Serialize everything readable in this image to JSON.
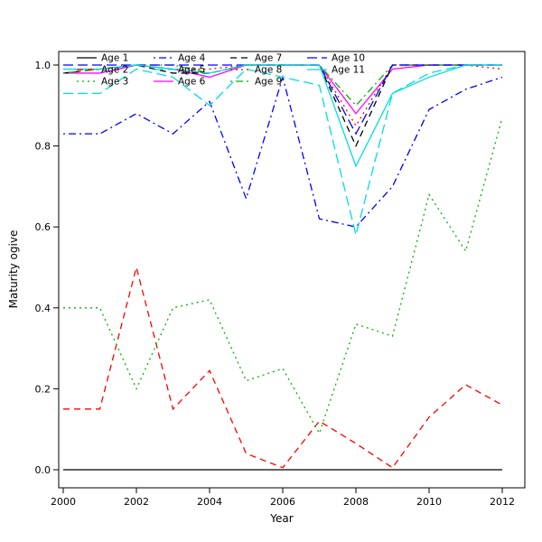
{
  "chart_data": {
    "type": "line",
    "title": "",
    "xlabel": "Year",
    "ylabel": "Maturity ogive",
    "x": [
      2000,
      2001,
      2002,
      2003,
      2004,
      2005,
      2006,
      2007,
      2008,
      2009,
      2010,
      2011,
      2012
    ],
    "xticks": [
      2000,
      2002,
      2004,
      2006,
      2008,
      2010,
      2012
    ],
    "xtick_labels": [
      "2000",
      "2002",
      "2004",
      "2006",
      "2008",
      "2010",
      "2012"
    ],
    "yticks": [
      0.0,
      0.2,
      0.4,
      0.6,
      0.8,
      1.0
    ],
    "ytick_labels": [
      "0.0",
      "0.2",
      "0.4",
      "0.6",
      "0.8",
      "1.0"
    ],
    "xlim": [
      2000,
      2012
    ],
    "ylim": [
      0.0,
      1.0
    ],
    "grid": "off",
    "legend_position": "top-left",
    "legend_ncol": 4,
    "series": [
      {
        "name": "Age 1",
        "color": "#000000",
        "dash": "solid",
        "values": [
          0,
          0,
          0,
          0,
          0,
          0,
          0,
          0,
          0,
          0,
          0,
          0,
          0
        ]
      },
      {
        "name": "Age 2",
        "color": "#ff0000",
        "dash": "dashed",
        "values": [
          0.15,
          0.15,
          0.5,
          0.15,
          0.245,
          0.04,
          0.005,
          0.12,
          0.065,
          0.005,
          0.13,
          0.21,
          0.16
        ]
      },
      {
        "name": "Age 3",
        "color": "#00b400",
        "dash": "dotted",
        "values": [
          0.4,
          0.4,
          0.2,
          0.4,
          0.42,
          0.22,
          0.25,
          0.09,
          0.36,
          0.33,
          0.68,
          0.54,
          0.87
        ]
      },
      {
        "name": "Age 4",
        "color": "#0000ff",
        "dash": "dotdash",
        "values": [
          0.83,
          0.83,
          0.88,
          0.83,
          0.91,
          0.67,
          0.97,
          0.62,
          0.6,
          0.7,
          0.89,
          0.94,
          0.97
        ]
      },
      {
        "name": "Age 5",
        "color": "#00dede",
        "dash": "longdash",
        "values": [
          0.93,
          0.93,
          0.99,
          0.97,
          0.9,
          0.99,
          0.97,
          0.95,
          0.58,
          0.93,
          0.98,
          1.0,
          1.0
        ]
      },
      {
        "name": "Age 6",
        "color": "#ff00ff",
        "dash": "solid",
        "values": [
          0.98,
          0.98,
          1.0,
          0.99,
          0.97,
          1.0,
          1.0,
          1.0,
          0.88,
          0.99,
          1.0,
          1.0,
          1.0
        ]
      },
      {
        "name": "Age 7",
        "color": "#000000",
        "dash": "dashed",
        "values": [
          0.98,
          0.99,
          1.0,
          0.98,
          0.98,
          1.0,
          1.0,
          1.0,
          0.8,
          1.0,
          1.0,
          1.0,
          1.0
        ]
      },
      {
        "name": "Age 8",
        "color": "#ff0000",
        "dash": "dotted",
        "values": [
          0.99,
          0.99,
          1.0,
          0.99,
          0.99,
          1.0,
          1.0,
          1.0,
          0.85,
          1.0,
          1.0,
          1.0,
          0.99
        ]
      },
      {
        "name": "Age 9",
        "color": "#00b400",
        "dash": "dotdash",
        "values": [
          0.98,
          0.99,
          1.0,
          1.0,
          0.98,
          1.0,
          1.0,
          1.0,
          0.9,
          1.0,
          1.0,
          1.0,
          1.0
        ]
      },
      {
        "name": "Age 10",
        "color": "#0000ff",
        "dash": "longdash",
        "values": [
          1.0,
          1.0,
          1.0,
          1.0,
          1.0,
          1.0,
          1.0,
          1.0,
          0.83,
          1.0,
          1.0,
          1.0,
          1.0
        ]
      },
      {
        "name": "Age 11",
        "color": "#00dede",
        "dash": "solid",
        "values": [
          0.99,
          0.99,
          1.0,
          0.99,
          0.98,
          1.0,
          1.0,
          1.0,
          0.75,
          0.93,
          0.97,
          1.0,
          1.0
        ]
      }
    ]
  }
}
